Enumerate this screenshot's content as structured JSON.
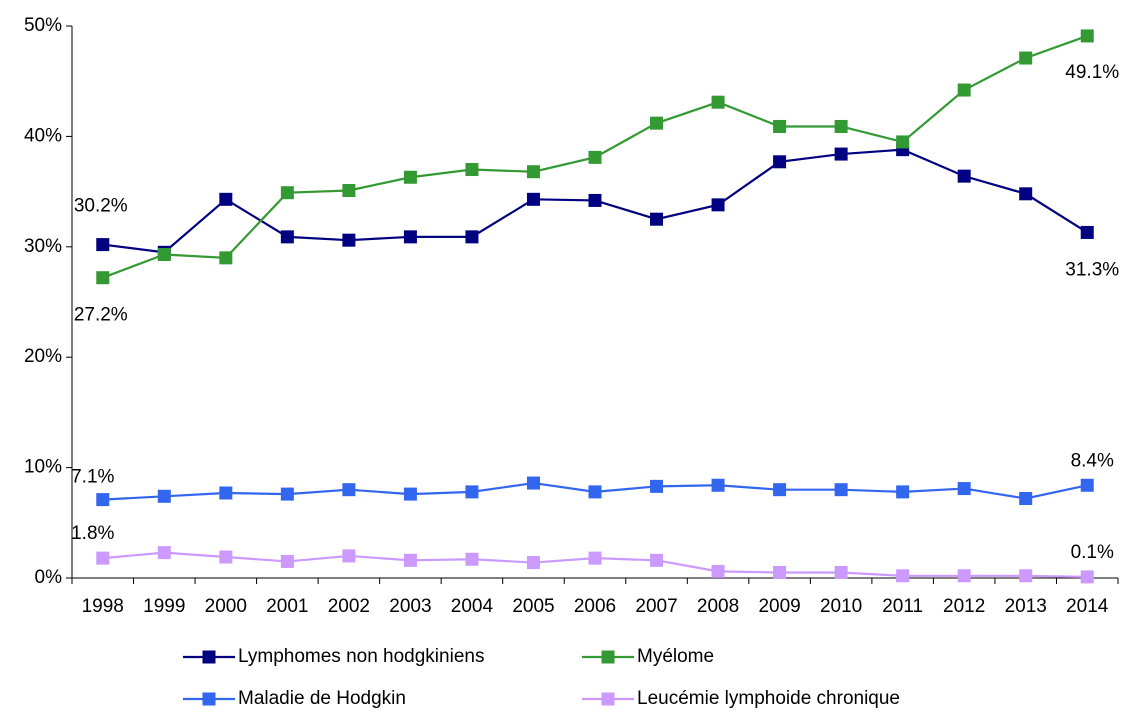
{
  "chart_data": {
    "type": "line",
    "categories": [
      "1998",
      "1999",
      "2000",
      "2001",
      "2002",
      "2003",
      "2004",
      "2005",
      "2006",
      "2007",
      "2008",
      "2009",
      "2010",
      "2011",
      "2012",
      "2013",
      "2014"
    ],
    "ylim": [
      0,
      50
    ],
    "yticks": [
      {
        "value": 0,
        "label": "0%"
      },
      {
        "value": 10,
        "label": "10%"
      },
      {
        "value": 20,
        "label": "20%"
      },
      {
        "value": 30,
        "label": "30%"
      },
      {
        "value": 40,
        "label": "40%"
      },
      {
        "value": 50,
        "label": "50%"
      }
    ],
    "grid": false,
    "legend": "bottom",
    "series": [
      {
        "name": "Lymphomes non hodgkiniens",
        "color": "#000080",
        "values": [
          30.2,
          29.5,
          34.3,
          30.9,
          30.6,
          30.9,
          30.9,
          34.3,
          34.2,
          32.5,
          33.8,
          37.7,
          38.4,
          38.8,
          36.4,
          34.8,
          31.3
        ],
        "value_labels": [
          "30.2%",
          null,
          null,
          null,
          null,
          null,
          null,
          null,
          null,
          null,
          null,
          null,
          null,
          null,
          null,
          null,
          "31.3%"
        ]
      },
      {
        "name": "Myélome",
        "color": "#339933",
        "values": [
          27.2,
          29.3,
          29.0,
          34.9,
          35.1,
          36.3,
          37.0,
          36.8,
          38.1,
          41.2,
          43.1,
          40.9,
          40.9,
          39.5,
          44.2,
          47.1,
          49.1
        ],
        "value_labels": [
          "27.2%",
          null,
          null,
          null,
          null,
          null,
          null,
          null,
          null,
          null,
          null,
          null,
          null,
          null,
          null,
          null,
          "49.1%"
        ]
      },
      {
        "name": "Maladie de Hodgkin",
        "color": "#3366ee",
        "values": [
          7.1,
          7.4,
          7.7,
          7.6,
          8.0,
          7.6,
          7.8,
          8.6,
          7.8,
          8.3,
          8.4,
          8.0,
          8.0,
          7.8,
          8.1,
          7.2,
          8.4
        ],
        "value_labels": [
          "7.1%",
          null,
          null,
          null,
          null,
          null,
          null,
          null,
          null,
          null,
          null,
          null,
          null,
          null,
          null,
          null,
          "8.4%"
        ]
      },
      {
        "name": "Leucémie lymphoide chronique",
        "color": "#cc99ff",
        "values": [
          1.8,
          2.3,
          1.9,
          1.5,
          2.0,
          1.6,
          1.7,
          1.4,
          1.8,
          1.6,
          0.6,
          0.5,
          0.5,
          0.2,
          0.2,
          0.2,
          0.1
        ],
        "value_labels": [
          "1.8%",
          null,
          null,
          null,
          null,
          null,
          null,
          null,
          null,
          null,
          null,
          null,
          null,
          null,
          null,
          null,
          "0.1%"
        ]
      }
    ]
  }
}
